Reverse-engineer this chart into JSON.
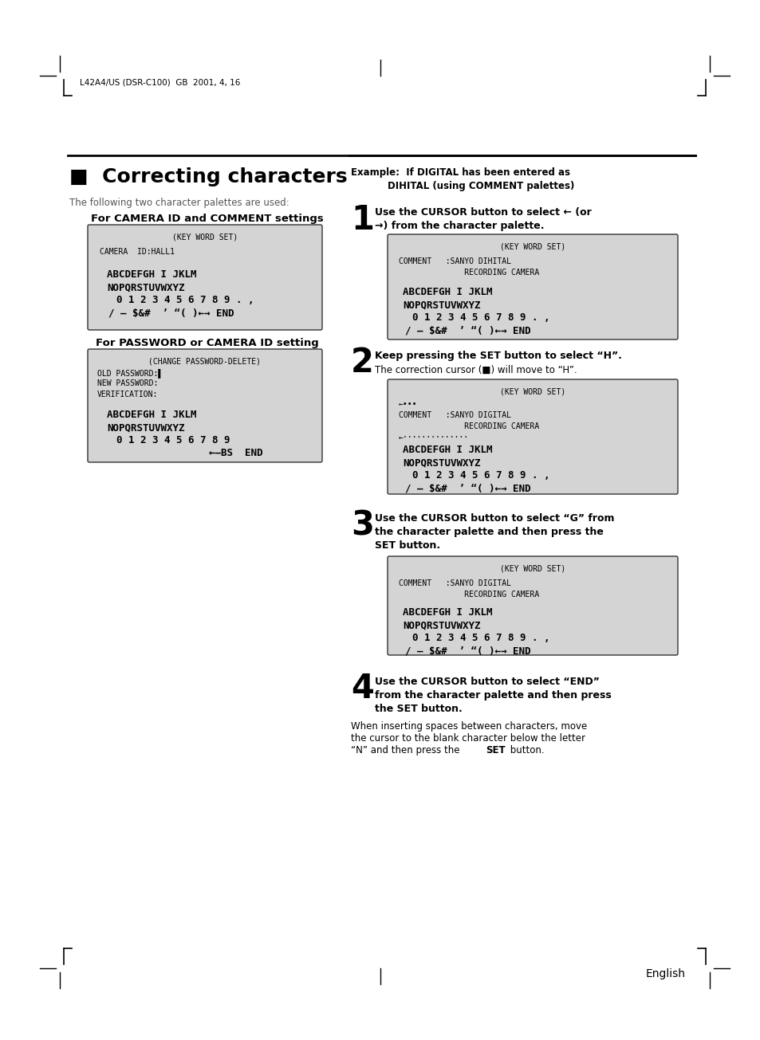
{
  "page_header": "L42A4/US (DSR-C100)  GB  2001, 4, 16",
  "section_title": "■  Correcting characters",
  "section_subtitle": "The following two character palettes are used:",
  "bg_color": "#ffffff",
  "box_bg": "#d4d4d4",
  "footer_text": "English"
}
